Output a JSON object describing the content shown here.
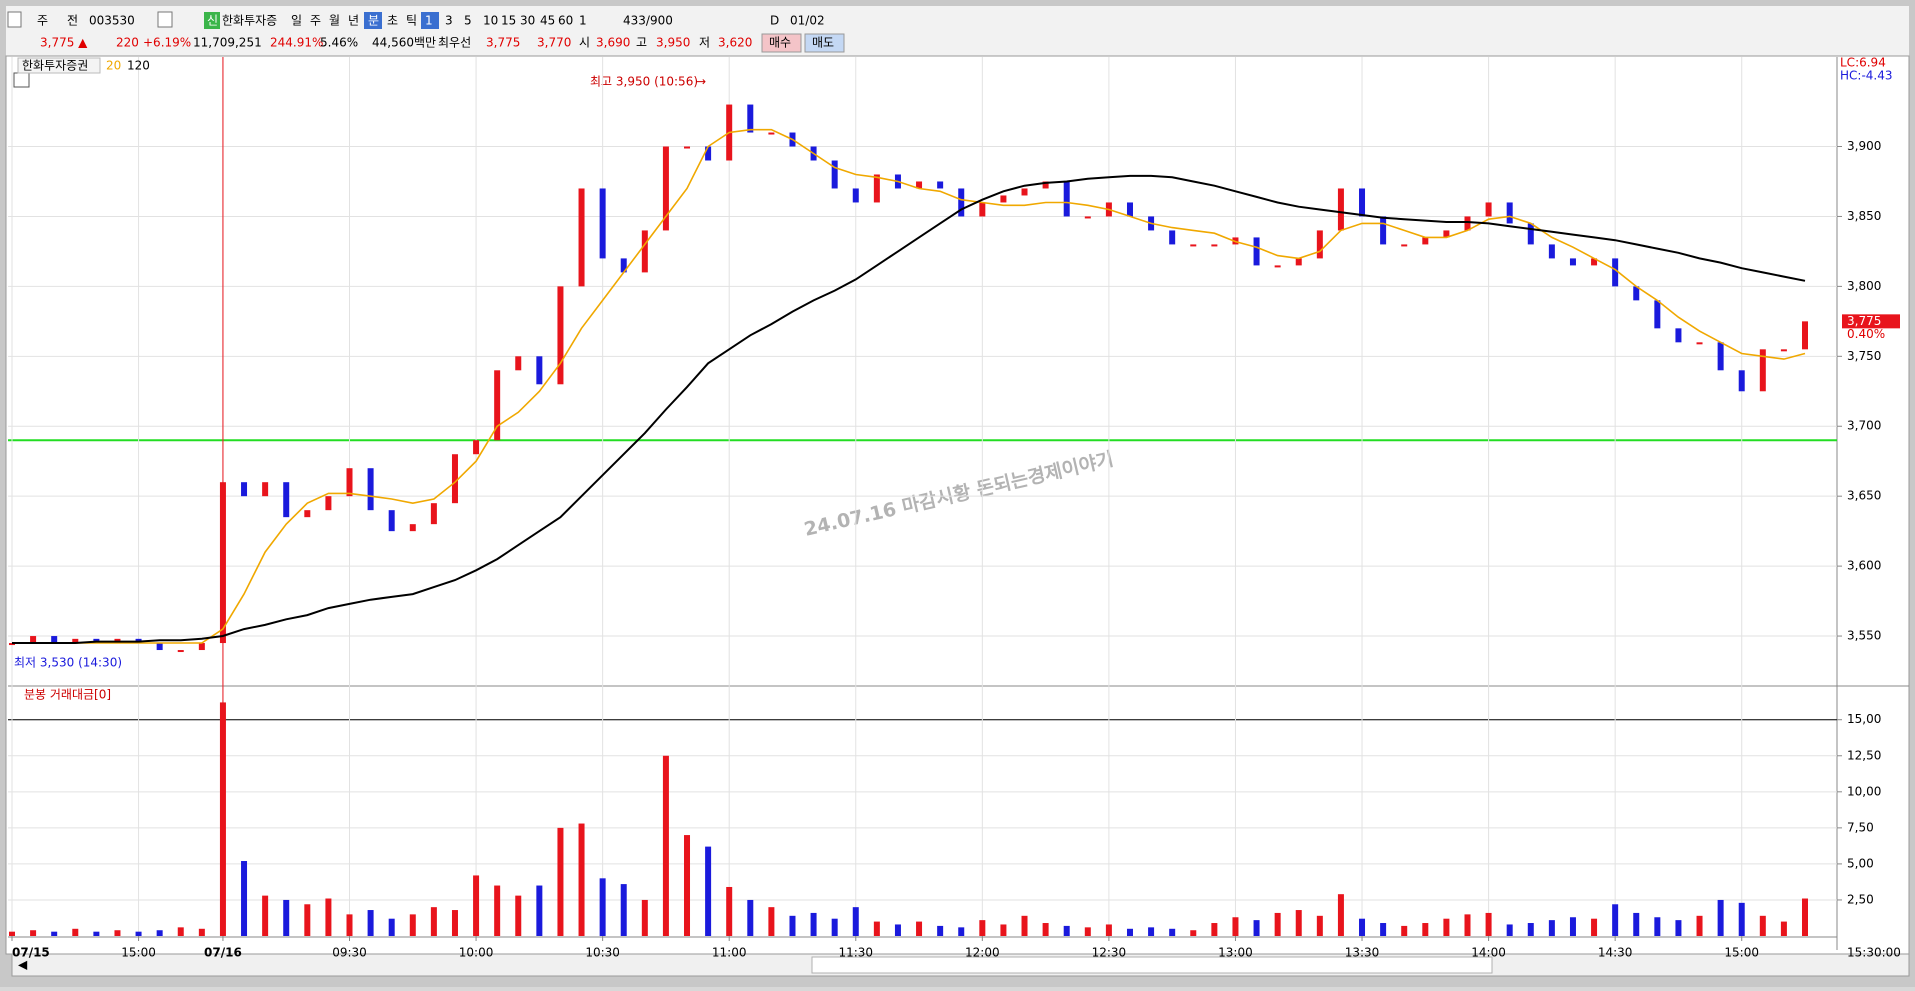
{
  "toolbar": [
    "주",
    "전",
    "003530",
    "신",
    "한화투자증",
    "일",
    "주",
    "월",
    "년",
    "분",
    "초",
    "틱",
    "1",
    "3",
    "5",
    "10",
    "15",
    "30",
    "45",
    "60",
    "1",
    "433/900",
    "D",
    "01/02"
  ],
  "quote": [
    {
      "text": "3,775 ▲",
      "color": "#e00000"
    },
    {
      "text": "220",
      "color": "#e00000"
    },
    {
      "text": "+6.19%",
      "color": "#e00000"
    },
    {
      "text": "11,709,251",
      "color": "#000000"
    },
    {
      "text": "244.91%",
      "color": "#e00000"
    },
    {
      "text": "5.46%",
      "color": "#000000"
    },
    {
      "text": "44,560백만",
      "color": "#000000"
    },
    {
      "text": "최우선",
      "color": "#000000"
    },
    {
      "text": "3,775",
      "color": "#e00000"
    },
    {
      "text": "3,770",
      "color": "#e00000"
    },
    {
      "text": "시",
      "color": "#000000"
    },
    {
      "text": "3,690",
      "color": "#e00000"
    },
    {
      "text": "고",
      "color": "#000000"
    },
    {
      "text": "3,950",
      "color": "#e00000"
    },
    {
      "text": "저",
      "color": "#000000"
    },
    {
      "text": "3,620",
      "color": "#e00000"
    },
    {
      "text": "매수",
      "color": "#000000"
    },
    {
      "text": "매도",
      "color": "#000000"
    }
  ],
  "chart_data": [
    {
      "type": "line",
      "categories": [
        "07/15",
        null,
        null,
        null,
        null,
        null,
        "15:00",
        null,
        null,
        null,
        "07/16",
        null,
        null,
        null,
        null,
        null,
        "09:30",
        null,
        null,
        null,
        null,
        null,
        "10:00",
        null,
        null,
        null,
        null,
        null,
        "10:30",
        null,
        null,
        null,
        null,
        null,
        "11:00",
        null,
        null,
        null,
        null,
        null,
        "11:30",
        null,
        null,
        null,
        null,
        null,
        "12:00",
        null,
        null,
        null,
        null,
        null,
        "12:30",
        null,
        null,
        null,
        null,
        null,
        "13:00",
        null,
        null,
        null,
        null,
        null,
        "13:30",
        null,
        null,
        null,
        null,
        null,
        "14:00",
        null,
        null,
        null,
        null,
        null,
        "14:30",
        null,
        null,
        null,
        null,
        null,
        "15:00",
        null,
        null,
        null
      ],
      "up_color": "#e8141c",
      "down_color": "#1a1adc",
      "series": [
        {
          "name": "한화투자증권",
          "style": "candle",
          "values": [
            3545,
            3550,
            3545,
            3548,
            3545,
            3548,
            3545,
            3540,
            3540,
            3545,
            3660,
            3650,
            3660,
            3635,
            3640,
            3650,
            3670,
            3640,
            3625,
            3630,
            3645,
            3680,
            3690,
            3740,
            3750,
            3730,
            3800,
            3870,
            3820,
            3810,
            3840,
            3900,
            3900,
            3890,
            3930,
            3910,
            3910,
            3900,
            3890,
            3870,
            3860,
            3880,
            3870,
            3875,
            3870,
            3850,
            3860,
            3865,
            3870,
            3875,
            3850,
            3850,
            3860,
            3850,
            3840,
            3830,
            3830,
            3830,
            3835,
            3815,
            3815,
            3820,
            3840,
            3870,
            3850,
            3830,
            3830,
            3835,
            3840,
            3850,
            3860,
            3845,
            3830,
            3820,
            3815,
            3820,
            3800,
            3790,
            3770,
            3760,
            3760,
            3740,
            3725,
            3755,
            3755,
            3775
          ]
        },
        {
          "name": "20",
          "style": "line",
          "color": "#f0a800",
          "values": [
            3545,
            3545,
            3545,
            3545,
            3545,
            3545,
            3545,
            3545,
            3545,
            3545,
            3555,
            3580,
            3610,
            3630,
            3645,
            3652,
            3652,
            3650,
            3648,
            3645,
            3648,
            3660,
            3675,
            3700,
            3710,
            3725,
            3745,
            3770,
            3790,
            3810,
            3830,
            3850,
            3870,
            3900,
            3910,
            3912,
            3912,
            3905,
            3895,
            3885,
            3880,
            3878,
            3875,
            3870,
            3868,
            3862,
            3860,
            3858,
            3858,
            3860,
            3860,
            3858,
            3855,
            3850,
            3845,
            3842,
            3840,
            3838,
            3832,
            3828,
            3822,
            3820,
            3825,
            3840,
            3845,
            3845,
            3840,
            3835,
            3835,
            3840,
            3848,
            3850,
            3845,
            3835,
            3828,
            3820,
            3812,
            3800,
            3790,
            3778,
            3768,
            3760,
            3752,
            3750,
            3748,
            3752
          ]
        },
        {
          "name": "120",
          "style": "line",
          "color": "#000000",
          "values": [
            3545,
            3545,
            3545,
            3545,
            3546,
            3546,
            3546,
            3547,
            3547,
            3548,
            3550,
            3555,
            3558,
            3562,
            3565,
            3570,
            3573,
            3576,
            3578,
            3580,
            3585,
            3590,
            3597,
            3605,
            3615,
            3625,
            3635,
            3650,
            3665,
            3680,
            3695,
            3712,
            3728,
            3745,
            3755,
            3765,
            3773,
            3782,
            3790,
            3797,
            3805,
            3815,
            3825,
            3835,
            3845,
            3855,
            3862,
            3868,
            3872,
            3874,
            3875,
            3877,
            3878,
            3879,
            3879,
            3878,
            3875,
            3872,
            3868,
            3864,
            3860,
            3857,
            3855,
            3853,
            3851,
            3849,
            3848,
            3847,
            3846,
            3846,
            3845,
            3843,
            3841,
            3839,
            3837,
            3835,
            3833,
            3830,
            3827,
            3824,
            3820,
            3817,
            3813,
            3810,
            3807,
            3804
          ]
        }
      ],
      "ylim": [
        3515,
        3964
      ],
      "yticks": [
        {
          "value": 3550,
          "label": "3,550"
        },
        {
          "value": 3600,
          "label": "3,600"
        },
        {
          "value": 3650,
          "label": "3,650"
        },
        {
          "value": 3700,
          "label": "3,700"
        },
        {
          "value": 3750,
          "label": "3,750"
        },
        {
          "value": 3800,
          "label": "3,800"
        },
        {
          "value": 3850,
          "label": "3,850"
        },
        {
          "value": 3900,
          "label": "3,900"
        }
      ],
      "grid": true,
      "hline": 3690,
      "hline_color": "#22dd22",
      "annotations": {
        "high": "최고 3,950 (10:56)",
        "low": "최저 3,530 (14:30)",
        "watermark": "24.07.16 마감시황  돈되는경제이야기",
        "lc": "LC:6.94",
        "hc": "HC:-4.43",
        "price_tag": "3,775",
        "change_tag": "0.40%"
      }
    },
    {
      "type": "bar",
      "title": "분봉 거래대금[0]",
      "values": [
        0.3,
        0.4,
        0.3,
        0.5,
        0.3,
        0.4,
        0.3,
        0.4,
        0.6,
        0.5,
        16.2,
        5.2,
        2.8,
        2.5,
        2.2,
        2.6,
        1.5,
        1.8,
        1.2,
        1.5,
        2.0,
        1.8,
        4.2,
        3.5,
        2.8,
        3.5,
        7.5,
        7.8,
        4.0,
        3.6,
        2.5,
        12.5,
        7.0,
        6.2,
        3.4,
        2.5,
        2.0,
        1.4,
        1.6,
        1.2,
        2.0,
        1.0,
        0.8,
        1.0,
        0.7,
        0.6,
        1.1,
        0.8,
        1.4,
        0.9,
        0.7,
        0.6,
        0.8,
        0.5,
        0.6,
        0.5,
        0.4,
        0.9,
        1.3,
        1.1,
        1.6,
        1.8,
        1.4,
        2.9,
        1.2,
        0.9,
        0.7,
        0.9,
        1.2,
        1.5,
        1.6,
        0.8,
        0.9,
        1.1,
        1.3,
        1.2,
        2.2,
        1.6,
        1.3,
        1.1,
        1.4,
        2.5,
        2.3,
        1.4,
        1.0,
        2.6
      ],
      "ylim": [
        0,
        17.2
      ],
      "yticks": [
        {
          "value": 2.5,
          "label": "2,50"
        },
        {
          "value": 5,
          "label": "5,00"
        },
        {
          "value": 7.5,
          "label": "7,50"
        },
        {
          "value": 10,
          "label": "10,00"
        },
        {
          "value": 12.5,
          "label": "12,50"
        },
        {
          "value": 15,
          "label": "15,00"
        }
      ],
      "grid": true,
      "hline": 15,
      "hline_color": "#000000",
      "x_end_label": "15:30:00"
    }
  ]
}
